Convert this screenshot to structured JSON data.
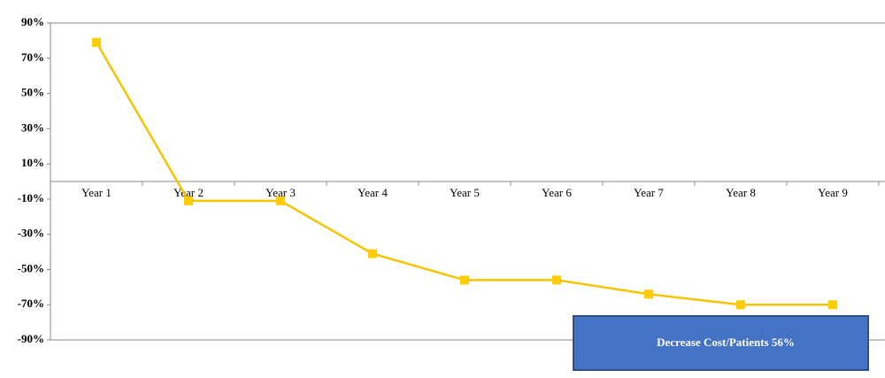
{
  "chart_data": {
    "type": "line",
    "categories": [
      "Year 1",
      "Year 2",
      "Year 3",
      "Year 4",
      "Year 5",
      "Year 6",
      "Year 7",
      "Year 8",
      "Year 9"
    ],
    "series": [
      {
        "color": "#f5c400",
        "values": [
          79,
          -11,
          -11,
          -41,
          -56,
          -56,
          -64,
          -70,
          -70
        ]
      }
    ],
    "ylim": [
      -90,
      90
    ],
    "yticks": [
      {
        "value": -90,
        "label": "-90%"
      },
      {
        "value": -70,
        "label": "-70%"
      },
      {
        "value": -50,
        "label": "-50%"
      },
      {
        "value": -30,
        "label": "-30%"
      },
      {
        "value": -10,
        "label": "-10%"
      },
      {
        "value": 10,
        "label": "10%"
      },
      {
        "value": 30,
        "label": "30%"
      },
      {
        "value": 50,
        "label": "50%"
      },
      {
        "value": 70,
        "label": "70%"
      },
      {
        "value": 90,
        "label": "90%"
      }
    ],
    "annotation": "Decrease Cost/Patients 56%"
  }
}
